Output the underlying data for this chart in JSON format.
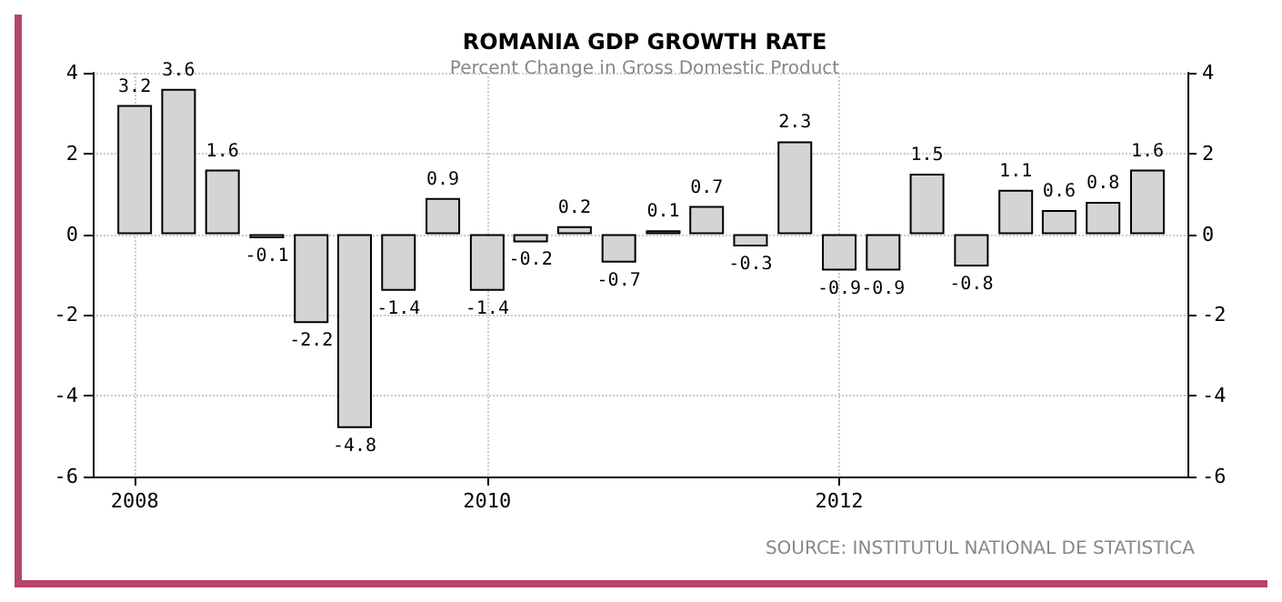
{
  "chart_data": {
    "type": "bar",
    "title": "ROMANIA GDP GROWTH RATE",
    "subtitle": "Percent Change in Gross Domestic Product",
    "x": [
      "2008-01",
      "2008-04",
      "2008-07",
      "2008-10",
      "2009-01",
      "2009-04",
      "2009-07",
      "2009-10",
      "2010-01",
      "2010-04",
      "2010-07",
      "2010-10",
      "2011-01",
      "2011-04",
      "2011-07",
      "2011-10",
      "2012-01",
      "2012-04",
      "2012-07",
      "2012-10",
      "2013-01",
      "2013-04",
      "2013-07",
      "2013-10"
    ],
    "values": [
      3.2,
      3.6,
      1.6,
      -0.1,
      -2.2,
      -4.8,
      -1.4,
      0.9,
      -1.4,
      -0.2,
      0.2,
      -0.7,
      0.1,
      0.7,
      -0.3,
      2.3,
      -0.9,
      -0.9,
      1.5,
      -0.8,
      1.1,
      0.6,
      0.8,
      1.6
    ],
    "color": "#d4d4d4",
    "data_labels": true,
    "xlim": [
      "2007-10-06",
      "2013-12-23"
    ],
    "xticks": [
      "2008",
      "2010",
      "2012"
    ],
    "ylim": [
      -6,
      4
    ],
    "yticks": [
      -6,
      -4,
      -2,
      0,
      2,
      4
    ],
    "y2lim": [
      -6,
      4
    ],
    "y2ticks": [
      -6,
      -4,
      -2,
      0,
      2,
      4
    ],
    "grid": true,
    "annotations": [
      "SOURCE: INSTITUTUL NATIONAL DE STATISTICA"
    ]
  }
}
